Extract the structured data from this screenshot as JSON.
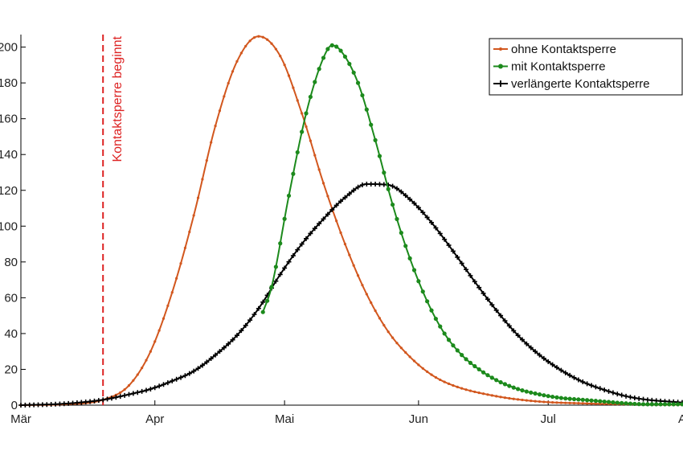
{
  "chart_data": {
    "type": "line",
    "title": "",
    "xlabel": "",
    "ylabel": "",
    "x_ticks": [
      {
        "day": 0,
        "label": "Mär"
      },
      {
        "day": 31,
        "label": "Apr"
      },
      {
        "day": 61,
        "label": "Mai"
      },
      {
        "day": 92,
        "label": "Jun"
      },
      {
        "day": 122,
        "label": "Jul"
      },
      {
        "day": 153,
        "label": "A"
      }
    ],
    "y_ticks": [
      {
        "value": 0,
        "label": "0"
      },
      {
        "value": 20,
        "label": "20"
      },
      {
        "value": 40,
        "label": "40"
      },
      {
        "value": 60,
        "label": "60"
      },
      {
        "value": 80,
        "label": "80"
      },
      {
        "value": 100,
        "label": "100"
      },
      {
        "value": 120,
        "label": "120"
      },
      {
        "value": 140,
        "label": "140"
      },
      {
        "value": 160,
        "label": "160"
      },
      {
        "value": 180,
        "label": "180"
      },
      {
        "value": 200,
        "label": "200"
      }
    ],
    "xlim": [
      0,
      153
    ],
    "ylim": [
      0,
      207
    ],
    "grid": false,
    "legend_position": "top-right",
    "annotation": {
      "text": "Kontaktsperre beginnt",
      "day": 19,
      "color": "#dd2222"
    },
    "series": [
      {
        "name": "ohne Kontaktsperre",
        "color": "#d2571e",
        "marker": "dot",
        "x": [
          0,
          10,
          19,
          25,
          30,
          35,
          40,
          45,
          50,
          55,
          60,
          65,
          70,
          75,
          80,
          85,
          90,
          95,
          100,
          110,
          120,
          130,
          140,
          153
        ],
        "y": [
          0,
          0.5,
          3,
          11,
          30,
          63,
          106,
          156,
          192,
          206,
          195,
          163,
          124,
          90,
          62,
          41,
          27,
          17,
          11,
          5,
          2,
          1,
          0.5,
          0.2
        ]
      },
      {
        "name": "mit Kontaktsperre",
        "color": "#1c8a1c",
        "marker": "filled-circle",
        "x": [
          56,
          58,
          62,
          66,
          70,
          72,
          74,
          78,
          82,
          86,
          90,
          94,
          98,
          102,
          106,
          110,
          115,
          120,
          125,
          130,
          135,
          140,
          145,
          153
        ],
        "y": [
          52,
          66,
          117,
          163,
          194,
          201,
          198,
          180,
          148,
          112,
          82,
          58,
          40,
          28,
          20,
          14,
          9,
          6,
          4,
          3,
          2,
          1,
          0.5,
          0.5
        ]
      },
      {
        "name": "verlängerte Kontaktsperre",
        "color": "#000000",
        "marker": "plus",
        "x": [
          0,
          10,
          19,
          25,
          30,
          35,
          40,
          45,
          50,
          55,
          60,
          65,
          70,
          75,
          80,
          85,
          90,
          95,
          100,
          105,
          110,
          115,
          120,
          125,
          130,
          135,
          140,
          145,
          153
        ],
        "y": [
          0,
          0.8,
          3,
          6,
          9,
          13.5,
          19,
          28,
          39,
          54,
          73,
          90,
          104,
          116,
          123.5,
          123,
          115,
          102,
          86,
          69,
          53,
          39,
          28,
          19.5,
          13,
          8.5,
          5,
          3,
          1.5
        ]
      }
    ]
  }
}
